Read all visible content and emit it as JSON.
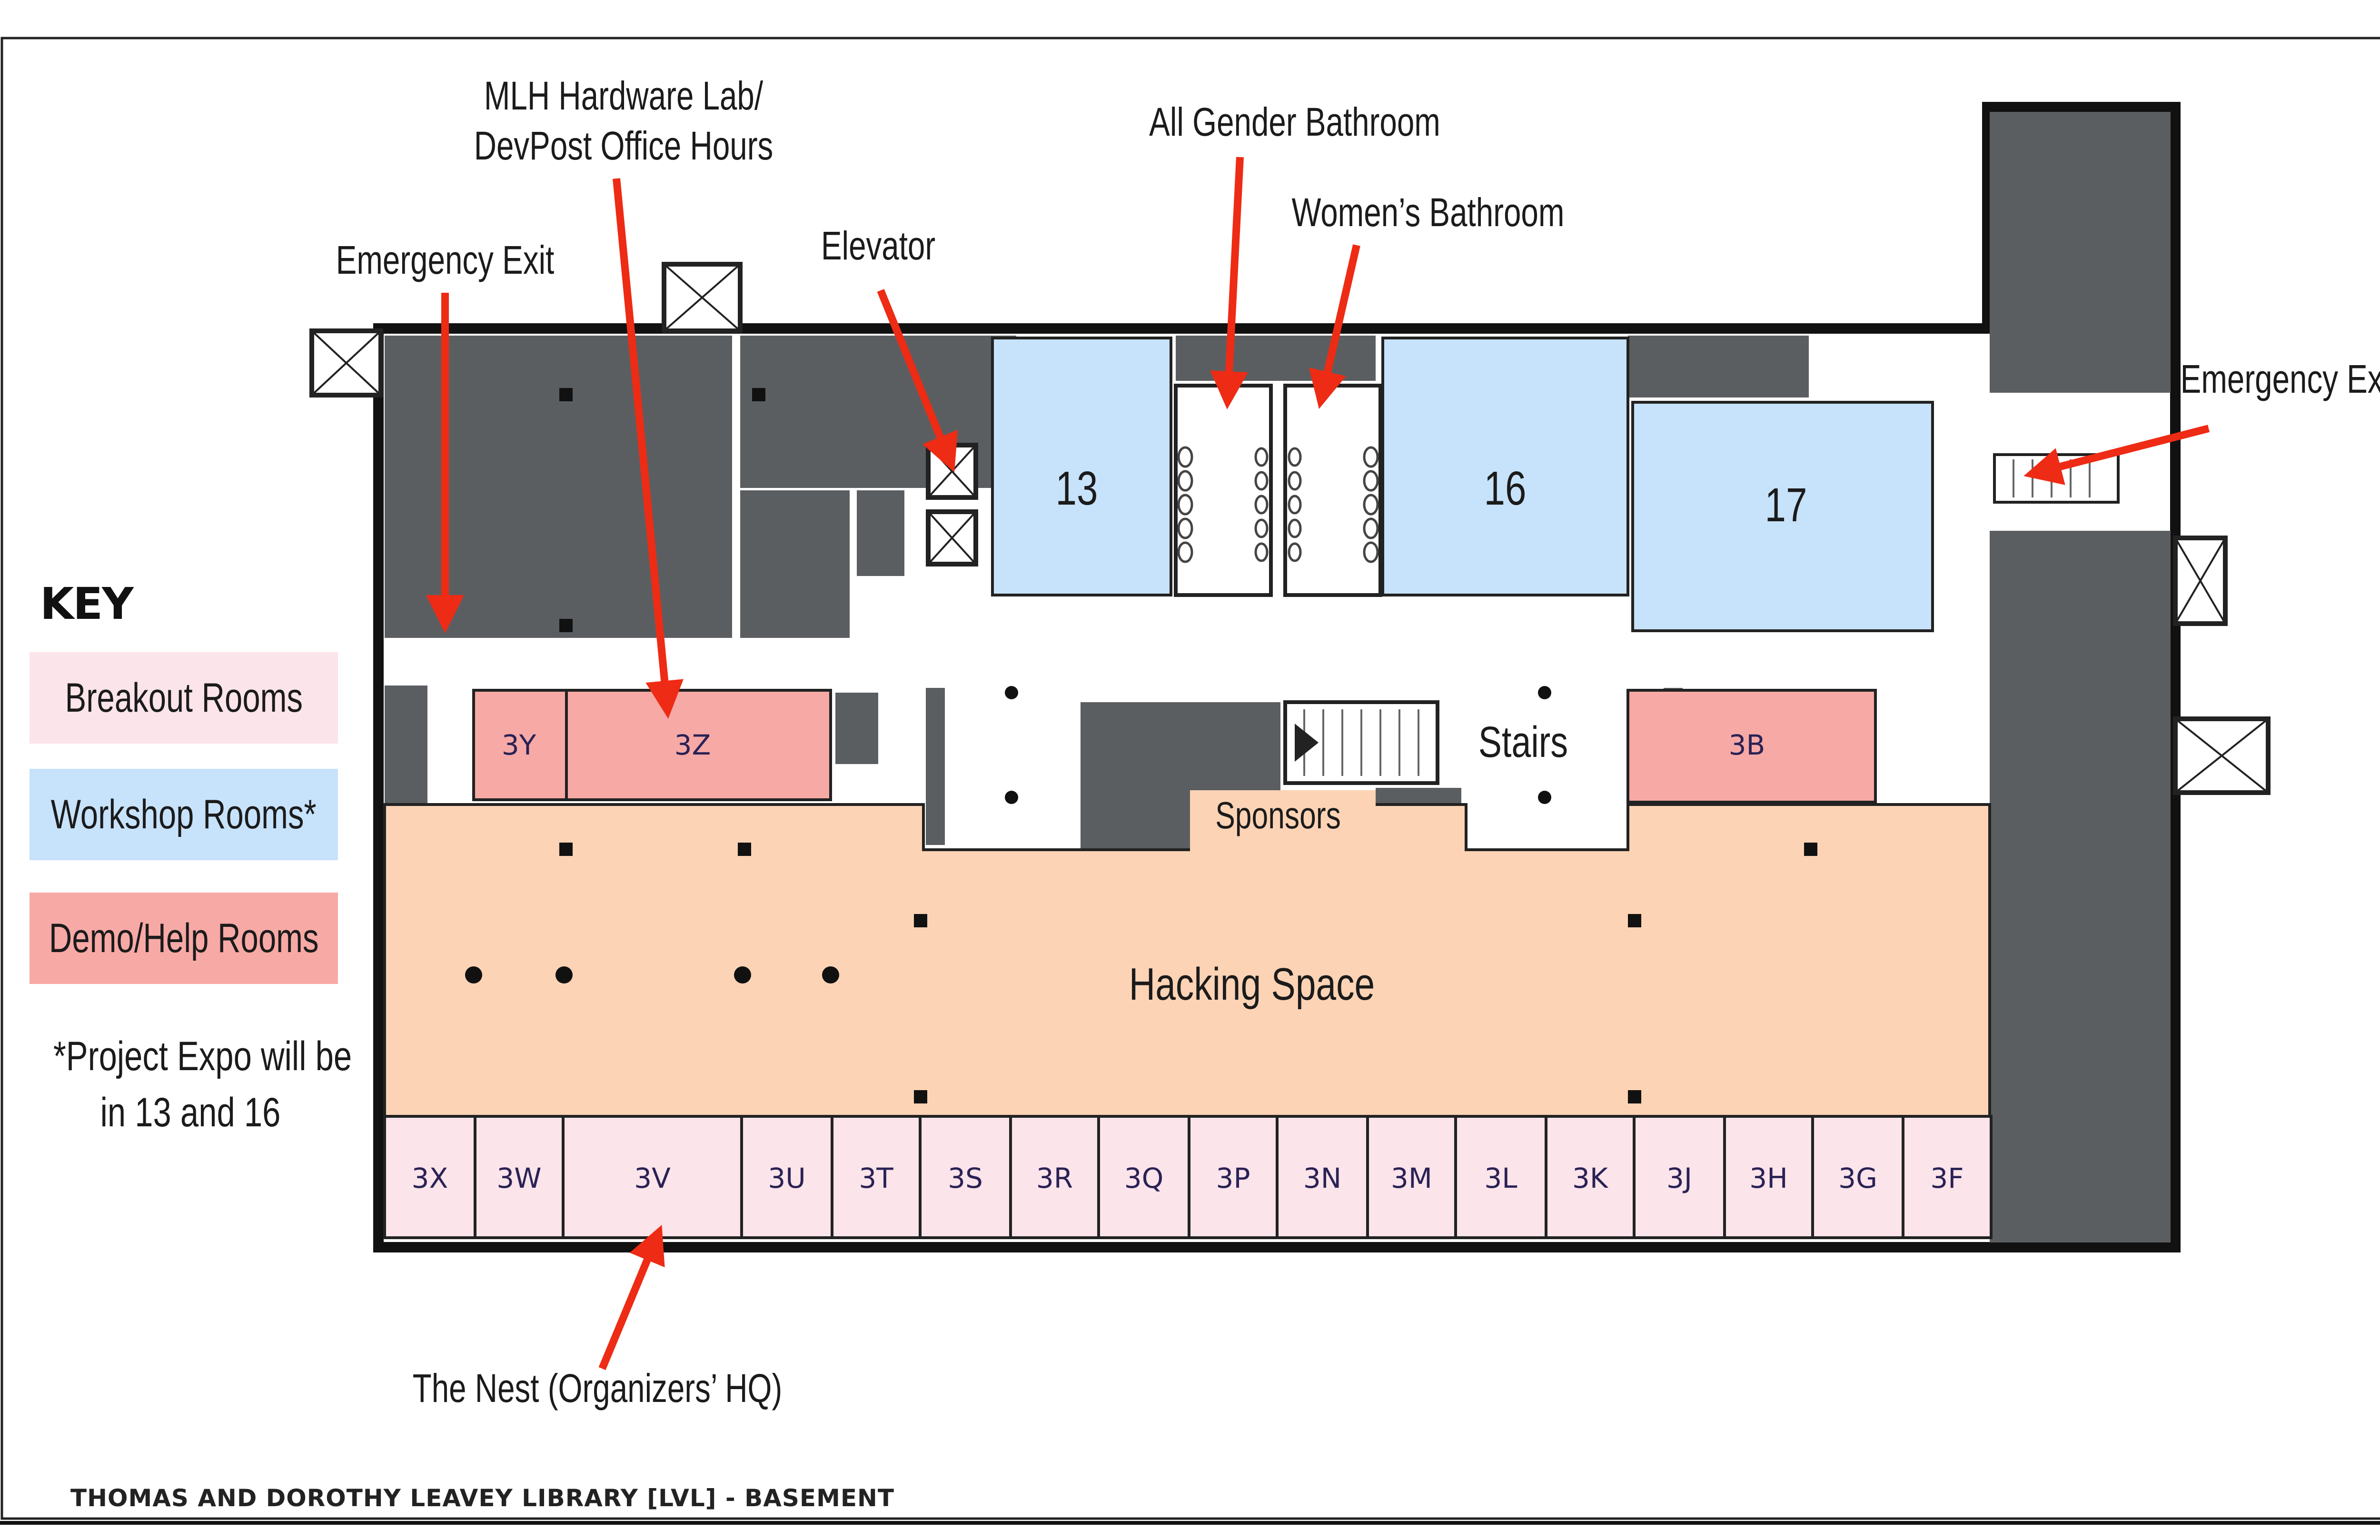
{
  "colors": {
    "breakout": "#fbe4ea",
    "workshop": "#c7e2fb",
    "demo_help": "#f7a9a6",
    "hacking_space": "#fcd3b5",
    "wall": "#5b5e61",
    "arrow": "#ee2b14"
  },
  "key": {
    "title": "KEY",
    "items": [
      {
        "label": "Breakout Rooms",
        "color": "#fbe4ea"
      },
      {
        "label": "Workshop Rooms*",
        "color": "#c7e2fb"
      },
      {
        "label": "Demo/Help Rooms",
        "color": "#f7a9a6"
      }
    ],
    "note_line1": "*Project Expo will be",
    "note_line2": "in 13 and 16"
  },
  "callouts": {
    "mlh_line1": "MLH Hardware Lab/",
    "mlh_line2": "DevPost Office Hours",
    "all_gender": "All Gender Bathroom",
    "womens": "Women’s Bathroom",
    "emergency_left": "Emergency Exit",
    "elevator": "Elevator",
    "emergency_right": "Emergency Exit",
    "nest": "The Nest (Organizers’ HQ)"
  },
  "areas": {
    "stairs": "Stairs",
    "sponsors": "Sponsors",
    "hacking_space": "Hacking Space"
  },
  "workshop_rooms": [
    "13",
    "16",
    "17"
  ],
  "demo_rooms": [
    "3Y",
    "3Z",
    "3B"
  ],
  "breakout_rooms": [
    "3X",
    "3W",
    "3V",
    "3U",
    "3T",
    "3S",
    "3R",
    "3Q",
    "3P",
    "3N",
    "3M",
    "3L",
    "3K",
    "3J",
    "3H",
    "3G",
    "3F"
  ],
  "footer": "THOMAS AND DOROTHY LEAVEY LIBRARY [LVL] - BASEMENT"
}
